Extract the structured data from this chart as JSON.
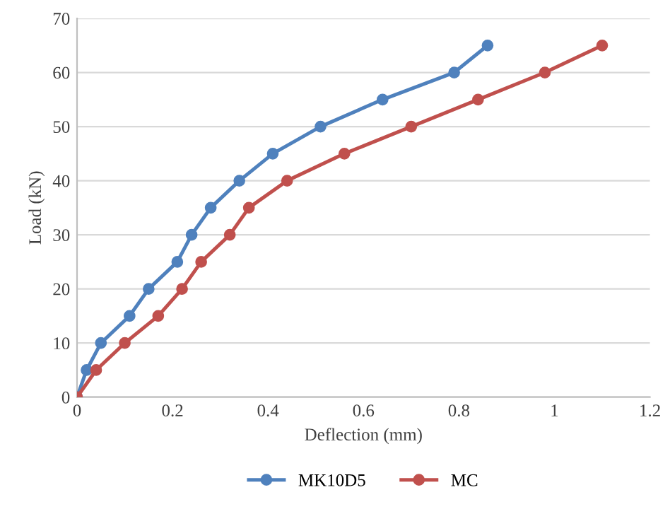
{
  "chart_data": {
    "type": "line",
    "xlabel": "Deflection (mm)",
    "ylabel": "Load (kN)",
    "xlim": [
      0,
      1.2
    ],
    "xticks": [
      0,
      0.2,
      0.4,
      0.6,
      0.8,
      1,
      1.2
    ],
    "ylim": [
      0,
      70
    ],
    "yticks": [
      0,
      10,
      20,
      30,
      40,
      50,
      60,
      70
    ],
    "grid": "y",
    "legend": "bottom",
    "marker": "circle",
    "line_style": "solid",
    "series": [
      {
        "name": "MK10D5",
        "color": "#4f81bd",
        "x": [
          0,
          0.02,
          0.05,
          0.11,
          0.15,
          0.21,
          0.24,
          0.28,
          0.34,
          0.41,
          0.51,
          0.64,
          0.79,
          0.86
        ],
        "values": [
          0,
          5,
          10,
          15,
          20,
          25,
          30,
          35,
          40,
          45,
          50,
          55,
          60,
          65
        ]
      },
      {
        "name": "MC",
        "color": "#c0504d",
        "x": [
          0,
          0.04,
          0.1,
          0.17,
          0.22,
          0.26,
          0.32,
          0.36,
          0.44,
          0.56,
          0.7,
          0.84,
          0.98,
          1.1
        ],
        "values": [
          0,
          5,
          10,
          15,
          20,
          25,
          30,
          35,
          40,
          45,
          50,
          55,
          60,
          65
        ]
      }
    ]
  }
}
